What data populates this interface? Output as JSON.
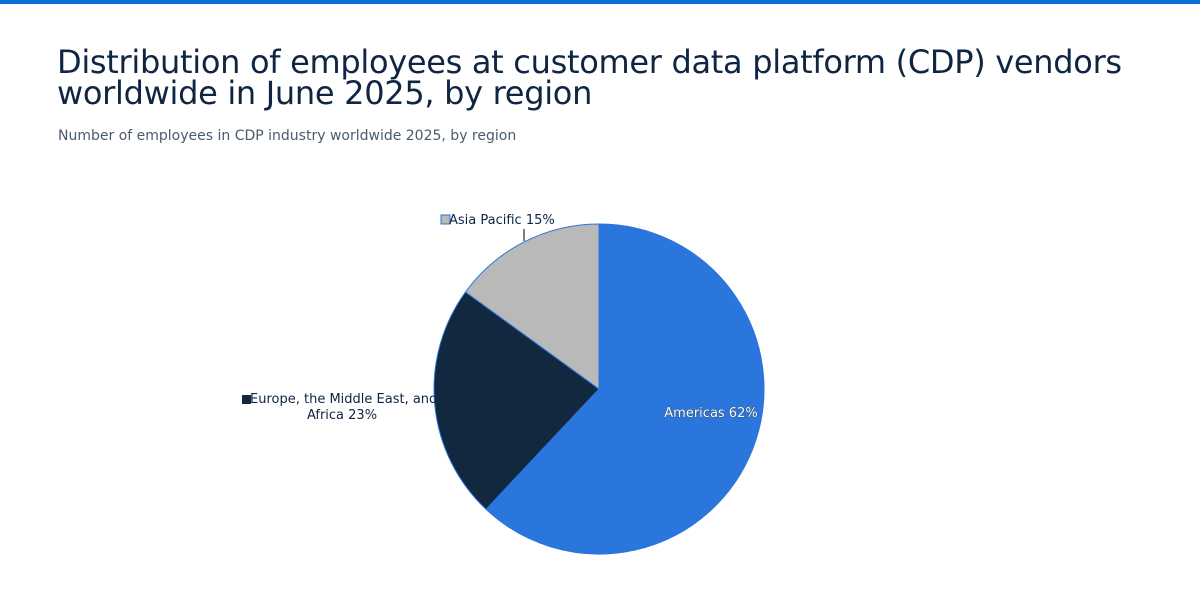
{
  "header": {
    "title_line1": "Distribution of employees at customer data platform (CDP) vendors",
    "title_line2": "worldwide in June 2025, by region",
    "subtitle": "Number of employees in CDP industry worldwide 2025, by region"
  },
  "colors": {
    "accent_bar": "#0a6fd6",
    "americas": "#2a76dc",
    "emea": "#12283f",
    "asia_pacific": "#b9b9b9"
  },
  "labels": {
    "asia_pacific": "Asia Pacific 15%",
    "emea_line1": "Europe, the Middle East, and",
    "emea_line2": "Africa 23%",
    "americas": "Americas 62%"
  },
  "chart_data": {
    "type": "pie",
    "title": "Distribution of employees at customer data platform (CDP) vendors worldwide in June 2025, by region",
    "subtitle": "Number of employees in CDP industry worldwide 2025, by region",
    "categories": [
      "Americas",
      "Europe, the Middle East, and Africa",
      "Asia Pacific"
    ],
    "values": [
      62,
      23,
      15
    ],
    "unit": "%",
    "colors": [
      "#2a76dc",
      "#12283f",
      "#b9b9b9"
    ],
    "start_angle": "12 o'clock, clockwise",
    "legend": "inline data labels"
  }
}
